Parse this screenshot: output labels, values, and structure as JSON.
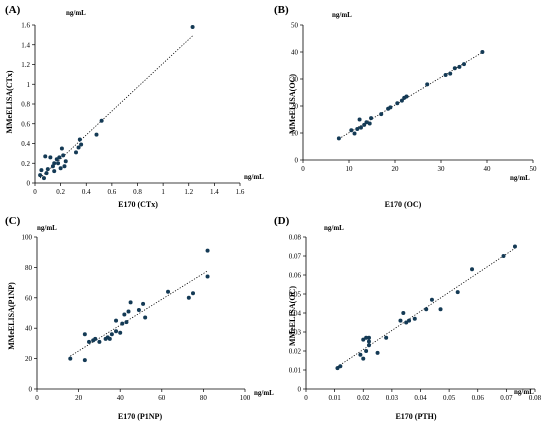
{
  "colors": {
    "point": "#143a55",
    "axis": "#000000",
    "trend": "#000000"
  },
  "chart_data": [
    {
      "type": "scatter",
      "panel_label": "(A)",
      "xlabel": "E170 (CTx)",
      "ylabel": "MMeELISA(CTx)",
      "x_unit": "ng/mL",
      "y_unit": "ng/mL",
      "xlim": [
        0,
        1.6
      ],
      "ylim": [
        0,
        1.6
      ],
      "xticks": [
        "0",
        "0.2",
        "0.4",
        "0.6",
        "0.8",
        "1",
        "1.2",
        "1.4",
        "1.6"
      ],
      "yticks": [
        "0",
        "0.2",
        "0.4",
        "0.6",
        "0.8",
        "1",
        "1.2",
        "1.4",
        "1.6"
      ],
      "trendline": "dotted linear",
      "points": [
        [
          0.04,
          0.08
        ],
        [
          0.05,
          0.13
        ],
        [
          0.07,
          0.05
        ],
        [
          0.08,
          0.27
        ],
        [
          0.09,
          0.1
        ],
        [
          0.1,
          0.14
        ],
        [
          0.12,
          0.26
        ],
        [
          0.14,
          0.17
        ],
        [
          0.15,
          0.12
        ],
        [
          0.15,
          0.2
        ],
        [
          0.17,
          0.24
        ],
        [
          0.18,
          0.2
        ],
        [
          0.19,
          0.26
        ],
        [
          0.2,
          0.15
        ],
        [
          0.21,
          0.35
        ],
        [
          0.22,
          0.28
        ],
        [
          0.23,
          0.17
        ],
        [
          0.24,
          0.22
        ],
        [
          0.32,
          0.31
        ],
        [
          0.34,
          0.36
        ],
        [
          0.35,
          0.44
        ],
        [
          0.36,
          0.39
        ],
        [
          0.48,
          0.49
        ],
        [
          0.52,
          0.63
        ],
        [
          1.23,
          1.58
        ]
      ]
    },
    {
      "type": "scatter",
      "panel_label": "(B)",
      "xlabel": "E170 (OC)",
      "ylabel": "MMeELISA(OC)",
      "x_unit": "ng/mL",
      "y_unit": "ng/mL",
      "xlim": [
        0,
        50
      ],
      "ylim": [
        0,
        50
      ],
      "xticks": [
        "0",
        "10",
        "20",
        "30",
        "40",
        "50"
      ],
      "yticks": [
        "0",
        "10",
        "20",
        "30",
        "40",
        "50"
      ],
      "trendline": "dotted linear",
      "points": [
        [
          7.8,
          8
        ],
        [
          10.5,
          11
        ],
        [
          11.2,
          9.8
        ],
        [
          11.8,
          11.5
        ],
        [
          12.3,
          15
        ],
        [
          12.6,
          12
        ],
        [
          13.3,
          13
        ],
        [
          13.8,
          14
        ],
        [
          14.5,
          13.5
        ],
        [
          14.8,
          15.5
        ],
        [
          17,
          17
        ],
        [
          18.5,
          19
        ],
        [
          19,
          19.5
        ],
        [
          20.5,
          21
        ],
        [
          21.5,
          22
        ],
        [
          22,
          23
        ],
        [
          22.5,
          23.5
        ],
        [
          27,
          28
        ],
        [
          31,
          31.5
        ],
        [
          32,
          32
        ],
        [
          33,
          34
        ],
        [
          34,
          34.5
        ],
        [
          35,
          35.5
        ],
        [
          39,
          40
        ]
      ]
    },
    {
      "type": "scatter",
      "panel_label": "(C)",
      "xlabel": "E170 (P1NP)",
      "ylabel": "MMeELISA(P1NP)",
      "x_unit": "ng/mL",
      "y_unit": "ng/mL",
      "xlim": [
        0,
        100
      ],
      "ylim": [
        0,
        100
      ],
      "xticks": [
        "0",
        "20",
        "40",
        "60",
        "80",
        "100"
      ],
      "yticks": [
        "0",
        "20",
        "40",
        "60",
        "80",
        "100"
      ],
      "trendline": "dotted linear",
      "points": [
        [
          16,
          20
        ],
        [
          23,
          19
        ],
        [
          23,
          36
        ],
        [
          25,
          31
        ],
        [
          27,
          32
        ],
        [
          28,
          33
        ],
        [
          30,
          31
        ],
        [
          33,
          33
        ],
        [
          34,
          34
        ],
        [
          35,
          33
        ],
        [
          36,
          36
        ],
        [
          38,
          38
        ],
        [
          38,
          45
        ],
        [
          40,
          37
        ],
        [
          41,
          43
        ],
        [
          42,
          49
        ],
        [
          43,
          44
        ],
        [
          44,
          51
        ],
        [
          45,
          57
        ],
        [
          49,
          52
        ],
        [
          51,
          56
        ],
        [
          52,
          47
        ],
        [
          63,
          64
        ],
        [
          73,
          60
        ],
        [
          75,
          63
        ],
        [
          82,
          91
        ],
        [
          82,
          74
        ]
      ]
    },
    {
      "type": "scatter",
      "panel_label": "(D)",
      "xlabel": "E170 (PTH)",
      "ylabel": "MMeELISA(OC)",
      "x_unit": "ng/mL",
      "y_unit": "ng/mL",
      "xlim": [
        0,
        0.08
      ],
      "ylim": [
        0,
        0.08
      ],
      "xticks": [
        "0",
        "0.01",
        "0.02",
        "0.03",
        "0.04",
        "0.05",
        "0.06",
        "0.07",
        "0.08"
      ],
      "yticks": [
        "0",
        "0.01",
        "0.02",
        "0.03",
        "0.04",
        "0.05",
        "0.06",
        "0.07",
        "0.08"
      ],
      "trendline": "dotted linear",
      "points": [
        [
          0.011,
          0.011
        ],
        [
          0.012,
          0.012
        ],
        [
          0.019,
          0.018
        ],
        [
          0.02,
          0.016
        ],
        [
          0.02,
          0.026
        ],
        [
          0.021,
          0.027
        ],
        [
          0.021,
          0.02
        ],
        [
          0.022,
          0.023
        ],
        [
          0.022,
          0.025
        ],
        [
          0.022,
          0.027
        ],
        [
          0.025,
          0.019
        ],
        [
          0.028,
          0.027
        ],
        [
          0.033,
          0.036
        ],
        [
          0.034,
          0.04
        ],
        [
          0.035,
          0.035
        ],
        [
          0.036,
          0.036
        ],
        [
          0.038,
          0.037
        ],
        [
          0.042,
          0.042
        ],
        [
          0.044,
          0.047
        ],
        [
          0.047,
          0.042
        ],
        [
          0.053,
          0.051
        ],
        [
          0.058,
          0.063
        ],
        [
          0.069,
          0.07
        ],
        [
          0.073,
          0.075
        ]
      ]
    }
  ]
}
